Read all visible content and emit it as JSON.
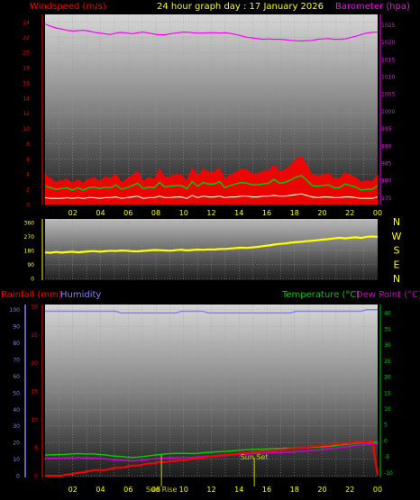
{
  "title": "24 hour graph day : 17 January 2026",
  "colors": {
    "wind": "#ff0000",
    "gust": "#00cc00",
    "avg": "#ccffcc",
    "baro": "#ff00ff",
    "dir": "#ffff00",
    "rain": "#ff0000",
    "humidity": "#8080ff",
    "temp": "#00cc00",
    "dew": "#cc00cc",
    "sun": "#cccc00",
    "compass": "#ffff00"
  },
  "chart_data": [
    {
      "type": "line",
      "name": "wind-baro",
      "left_label": "Windspeed (m/s)",
      "right_label": "Barometer (hpa)",
      "x_ticks": [
        "02",
        "04",
        "06",
        "08",
        "10",
        "12",
        "14",
        "16",
        "18",
        "20",
        "22",
        "00"
      ],
      "ylim_left": [
        0,
        25
      ],
      "y_ticks_left": [
        "0",
        "2",
        "4",
        "6",
        "8",
        "10",
        "12",
        "14",
        "16",
        "18",
        "20",
        "22",
        "24"
      ],
      "ylim_right": [
        973,
        1028
      ],
      "y_ticks_right": [
        "975",
        "980",
        "985",
        "990",
        "995",
        "1000",
        "1005",
        "1010",
        "1015",
        "1020",
        "1025"
      ],
      "series": [
        {
          "key": "barometer",
          "axis": "right",
          "values": [
            1025.2,
            1024.6,
            1024.1,
            1023.8,
            1023.4,
            1023.2,
            1023.3,
            1023.4,
            1023.2,
            1022.8,
            1022.6,
            1022.4,
            1022.2,
            1022.6,
            1022.8,
            1022.6,
            1022.4,
            1022.7,
            1022.9,
            1022.6,
            1022.3,
            1022.1,
            1022.1,
            1022.4,
            1022.6,
            1022.8,
            1022.9,
            1022.7,
            1022.6,
            1022.6,
            1022.7,
            1022.7,
            1022.6,
            1022.7,
            1022.5,
            1022.2,
            1021.8,
            1021.4,
            1021.2,
            1021.0,
            1020.8,
            1020.9,
            1020.8,
            1020.8,
            1020.7,
            1020.5,
            1020.4,
            1020.3,
            1020.4,
            1020.5,
            1020.8,
            1020.9,
            1021.0,
            1020.8,
            1020.8,
            1020.9,
            1021.3,
            1021.7,
            1022.2,
            1022.6,
            1022.8,
            1022.9
          ]
        },
        {
          "key": "gust",
          "axis": "left",
          "values": [
            4.0,
            3.5,
            3.0,
            3.2,
            3.4,
            2.9,
            3.3,
            2.9,
            3.4,
            3.6,
            3.1,
            3.7,
            3.5,
            4.1,
            3.0,
            3.4,
            3.9,
            4.5,
            3.1,
            3.6,
            3.4,
            4.8,
            3.6,
            3.7,
            4.1,
            4.0,
            3.2,
            4.9,
            3.8,
            4.7,
            4.3,
            4.3,
            4.9,
            3.4,
            4.0,
            4.3,
            4.7,
            4.6,
            4.1,
            4.1,
            4.4,
            4.5,
            5.3,
            4.4,
            4.6,
            5.2,
            6.0,
            6.4,
            5.3,
            4.0,
            3.8,
            3.9,
            4.2,
            3.5,
            3.5,
            4.3,
            3.9,
            3.6,
            3.0,
            3.2,
            3.1,
            4.0
          ]
        },
        {
          "key": "wind",
          "axis": "left",
          "values": [
            2.4,
            2.2,
            2.0,
            2.1,
            2.2,
            1.9,
            2.2,
            1.9,
            2.2,
            2.3,
            2.1,
            2.3,
            2.2,
            2.6,
            2.0,
            2.2,
            2.5,
            2.8,
            2.1,
            2.3,
            2.2,
            2.9,
            2.3,
            2.4,
            2.5,
            2.5,
            2.1,
            3.0,
            2.4,
            2.9,
            2.7,
            2.7,
            3.0,
            2.2,
            2.5,
            2.7,
            2.9,
            2.8,
            2.6,
            2.6,
            2.7,
            2.8,
            3.3,
            2.8,
            2.9,
            3.2,
            3.6,
            3.8,
            3.2,
            2.5,
            2.4,
            2.5,
            2.6,
            2.2,
            2.2,
            2.7,
            2.5,
            2.3,
            1.9,
            2.0,
            2.0,
            2.5
          ]
        },
        {
          "key": "average",
          "axis": "left",
          "values": [
            0.9,
            0.8,
            0.8,
            0.8,
            0.9,
            0.8,
            0.9,
            0.8,
            0.9,
            0.9,
            0.8,
            0.9,
            0.9,
            1.0,
            0.8,
            0.9,
            1.0,
            1.1,
            0.8,
            0.9,
            0.9,
            1.1,
            0.9,
            0.9,
            1.0,
            1.0,
            0.8,
            1.2,
            0.9,
            1.1,
            1.0,
            1.0,
            1.1,
            0.9,
            1.0,
            1.0,
            1.1,
            1.1,
            1.0,
            1.0,
            1.1,
            1.1,
            1.2,
            1.1,
            1.1,
            1.2,
            1.3,
            1.4,
            1.2,
            1.0,
            0.9,
            1.0,
            1.0,
            0.9,
            0.9,
            1.0,
            1.0,
            0.9,
            0.8,
            0.8,
            0.8,
            1.0
          ]
        }
      ]
    },
    {
      "type": "line",
      "name": "wind-direction",
      "x_ticks": [
        "02",
        "04",
        "06",
        "08",
        "10",
        "12",
        "14",
        "16",
        "18",
        "20",
        "22",
        "00"
      ],
      "ylim": [
        0,
        360
      ],
      "y_ticks": [
        "0",
        "90",
        "180",
        "270",
        "360"
      ],
      "compass": [
        "N",
        "W",
        "S",
        "E",
        "N"
      ],
      "series": [
        {
          "key": "direction",
          "values": [
            167,
            165,
            170,
            166,
            169,
            172,
            168,
            171,
            174,
            176,
            172,
            175,
            178,
            176,
            180,
            178,
            175,
            174,
            177,
            180,
            183,
            182,
            180,
            178,
            182,
            185,
            180,
            183,
            186,
            184,
            187,
            186,
            189,
            190,
            193,
            195,
            198,
            196,
            200,
            203,
            208,
            212,
            218,
            222,
            225,
            230,
            233,
            236,
            240,
            243,
            246,
            250,
            253,
            258,
            262,
            258,
            262,
            265,
            261,
            268,
            270,
            268
          ]
        }
      ]
    },
    {
      "type": "line",
      "name": "rain-temp",
      "left_labels": [
        "Rainfall (mm)",
        "Humidity"
      ],
      "right_labels": [
        "Temperature (°C)",
        "Dew Point (°C)"
      ],
      "x_ticks": [
        "02",
        "04",
        "06",
        "08",
        "10",
        "12",
        "14",
        "16",
        "18",
        "20",
        "22",
        "00"
      ],
      "ylim_humidity": [
        0,
        102
      ],
      "y_ticks_humidity": [
        "0",
        "10",
        "20",
        "30",
        "40",
        "50",
        "60",
        "70",
        "80",
        "90",
        "100"
      ],
      "ylim_rain": [
        0,
        30
      ],
      "y_ticks_rain": [
        "0",
        "5",
        "10",
        "15",
        "20",
        "25",
        "30"
      ],
      "ylim_temp": [
        -11,
        42
      ],
      "y_ticks_temp": [
        "-10",
        "-5",
        "0",
        "5",
        "10",
        "15",
        "20",
        "25",
        "30",
        "35",
        "40"
      ],
      "sun_rise_label": "Sun Rise",
      "sun_set_label": "Sun Set",
      "sun_rise_hour": 8.4,
      "sun_set_hour": 15.1,
      "series": [
        {
          "key": "humidity",
          "values": [
            99,
            99,
            99,
            99,
            99,
            99,
            99,
            99,
            99,
            99,
            99,
            99,
            99,
            99,
            98,
            98,
            98,
            98,
            98,
            98,
            98,
            98,
            98,
            98,
            98,
            99,
            99,
            99,
            99,
            99,
            98,
            98,
            98,
            98,
            98,
            98,
            98,
            98,
            98,
            98,
            98,
            98,
            98,
            98,
            98,
            98,
            99,
            99,
            99,
            99,
            99,
            99,
            99,
            99,
            99,
            99,
            99,
            99,
            99,
            100,
            100,
            100
          ]
        },
        {
          "key": "temperature",
          "values": [
            -4.6,
            -4.5,
            -4.4,
            -4.4,
            -4.3,
            -4.2,
            -4.1,
            -4.2,
            -4.2,
            -4.2,
            -4.4,
            -4.5,
            -4.7,
            -4.9,
            -5.0,
            -5.2,
            -5.3,
            -5.2,
            -5.0,
            -4.8,
            -4.6,
            -4.4,
            -4.2,
            -4.1,
            -4.0,
            -4.0,
            -4.0,
            -4.1,
            -4.0,
            -3.8,
            -3.7,
            -3.6,
            -3.5,
            -3.4,
            -3.3,
            -3.1,
            -3.0,
            -2.9,
            -2.8,
            -2.7,
            -2.7,
            -2.6,
            -2.5,
            -2.5,
            -2.4,
            -2.4,
            -2.3,
            -2.3,
            -2.2,
            -2.1,
            -2.0,
            -1.9,
            -1.8,
            -1.6,
            -1.4,
            -1.2,
            -1.0,
            -0.8,
            -0.6,
            -0.5,
            -0.5,
            -0.5
          ]
        },
        {
          "key": "dewpoint",
          "values": [
            -5.6,
            -5.6,
            -5.5,
            -5.5,
            -5.4,
            -5.4,
            -5.3,
            -5.4,
            -5.4,
            -5.5,
            -5.6,
            -5.7,
            -5.9,
            -6.1,
            -6.2,
            -6.3,
            -6.4,
            -6.3,
            -6.1,
            -5.9,
            -5.7,
            -5.6,
            -5.5,
            -5.4,
            -5.4,
            -5.3,
            -5.3,
            -5.3,
            -5.2,
            -5.0,
            -4.9,
            -4.8,
            -4.8,
            -4.7,
            -4.5,
            -4.4,
            -4.3,
            -4.3,
            -4.1,
            -4.0,
            -4.0,
            -3.9,
            -3.8,
            -3.8,
            -3.7,
            -3.7,
            -3.5,
            -3.4,
            -3.3,
            -3.1,
            -3.0,
            -2.8,
            -2.6,
            -2.4,
            -2.2,
            -2.0,
            -1.8,
            -1.5,
            -1.3,
            -1.1,
            -1.0,
            -1.0
          ]
        },
        {
          "key": "rainfall",
          "values": [
            0.0,
            0.0,
            0.0,
            0.0,
            0.2,
            0.3,
            0.5,
            0.6,
            0.8,
            1.0,
            1.0,
            1.0,
            1.2,
            1.4,
            1.4,
            1.6,
            1.8,
            1.8,
            2.0,
            2.2,
            2.2,
            2.4,
            2.4,
            2.6,
            2.6,
            2.8,
            2.8,
            3.0,
            3.0,
            3.2,
            3.4,
            3.4,
            3.6,
            3.6,
            3.8,
            3.8,
            4.0,
            4.0,
            4.2,
            4.2,
            4.4,
            4.4,
            4.4,
            4.6,
            4.6,
            4.8,
            4.8,
            5.0,
            5.0,
            5.2,
            5.2,
            5.4,
            5.4,
            5.6,
            5.6,
            5.8,
            5.8,
            6.0,
            6.0,
            6.0,
            6.2,
            0.0
          ]
        }
      ]
    }
  ]
}
